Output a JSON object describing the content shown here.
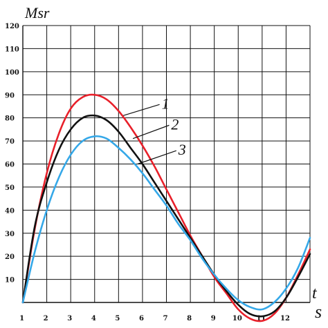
{
  "chart_data": {
    "type": "line",
    "title": "",
    "ylabel": "Msr",
    "xlabel": "t",
    "xlabel_unit": "s",
    "xlim": [
      0,
      12
    ],
    "ylim": [
      0,
      120
    ],
    "x_ticks": [
      "1",
      "2",
      "3",
      "4",
      "5",
      "6",
      "7",
      "8",
      "9",
      "10",
      "11",
      "12"
    ],
    "y_ticks": [
      "10",
      "20",
      "30",
      "40",
      "50",
      "60",
      "70",
      "80",
      "90",
      "100",
      "110",
      "120"
    ],
    "grid": true,
    "series": [
      {
        "name": "1",
        "color": "#e8202a",
        "x": [
          0,
          0.5,
          1,
          1.5,
          2,
          2.5,
          3,
          3.5,
          4,
          4.5,
          5,
          5.5,
          6,
          6.5,
          7,
          7.5,
          8,
          8.5,
          9,
          9.5,
          10,
          10.5,
          11,
          11.5,
          12
        ],
        "y": [
          0,
          32,
          56,
          73,
          84,
          89,
          90,
          88,
          83,
          76,
          68,
          59,
          49,
          39,
          29,
          20,
          11,
          4,
          -3,
          -7,
          -8,
          -5,
          2,
          12,
          23
        ]
      },
      {
        "name": "2",
        "color": "#111111",
        "x": [
          0,
          0.5,
          1,
          1.5,
          2,
          2.5,
          3,
          3.5,
          4,
          4.5,
          5,
          5.5,
          6,
          6.5,
          7,
          7.5,
          8,
          8.5,
          9,
          9.5,
          10,
          10.5,
          11,
          11.5,
          12
        ],
        "y": [
          0,
          33,
          52,
          66,
          75,
          80,
          81,
          79,
          74,
          67,
          60,
          52,
          44,
          36,
          28,
          20,
          12,
          5,
          -1,
          -5,
          -6,
          -4,
          2,
          11,
          21
        ]
      },
      {
        "name": "3",
        "color": "#35a8e8",
        "x": [
          0,
          0.5,
          1,
          1.5,
          2,
          2.5,
          3,
          3.5,
          4,
          4.5,
          5,
          5.5,
          6,
          6.5,
          7,
          7.5,
          8,
          8.5,
          9,
          9.5,
          10,
          10.5,
          11,
          11.5,
          12
        ],
        "y": [
          0,
          22,
          40,
          54,
          64,
          70,
          72,
          71,
          67,
          62,
          56,
          49,
          42,
          34,
          27,
          19,
          12,
          6,
          1,
          -2,
          -3,
          0,
          6,
          15,
          28
        ]
      }
    ],
    "curve_labels": [
      {
        "text": "1",
        "series": "1",
        "label_at": [
          5.8,
          84
        ],
        "anchor_x": 4.2,
        "anchor_y": 81
      },
      {
        "text": "2",
        "series": "2",
        "label_at": [
          6.2,
          75
        ],
        "anchor_x": 4.6,
        "anchor_y": 71
      },
      {
        "text": "3",
        "series": "3",
        "label_at": [
          6.5,
          64
        ],
        "anchor_x": 4.8,
        "anchor_y": 60
      }
    ]
  }
}
